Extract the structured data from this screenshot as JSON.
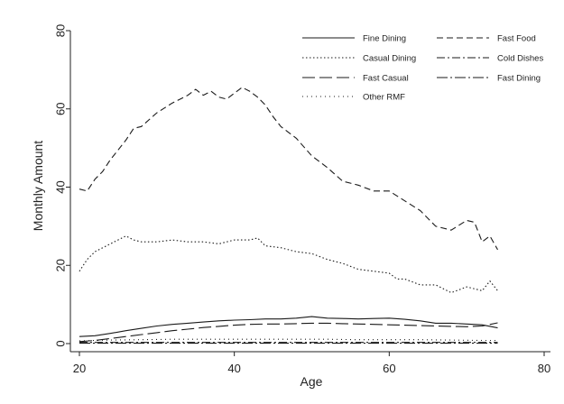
{
  "chart_data": {
    "type": "line",
    "title": "",
    "xlabel": "Age",
    "ylabel": "Monthly Amount",
    "xlim": [
      20,
      80
    ],
    "ylim": [
      0,
      80
    ],
    "xticks": [
      20,
      40,
      60,
      80
    ],
    "yticks": [
      0,
      20,
      40,
      60,
      80
    ],
    "grid": false,
    "legend_position": "top-right",
    "series": [
      {
        "name": "Fine Dining",
        "style": "solid",
        "x": [
          20,
          22,
          24,
          26,
          28,
          30,
          32,
          34,
          36,
          38,
          40,
          42,
          44,
          46,
          48,
          50,
          52,
          54,
          56,
          58,
          60,
          62,
          64,
          66,
          68,
          70,
          72,
          74
        ],
        "y": [
          1.8,
          2.0,
          2.6,
          3.3,
          3.9,
          4.5,
          4.9,
          5.2,
          5.5,
          5.8,
          6.0,
          6.1,
          6.3,
          6.3,
          6.5,
          6.9,
          6.5,
          6.4,
          6.3,
          6.4,
          6.5,
          6.2,
          5.8,
          5.2,
          5.2,
          5.0,
          4.8,
          4.0
        ]
      },
      {
        "name": "Fast Food",
        "style": "dashed",
        "x": [
          20,
          21,
          22,
          23,
          24,
          25,
          26,
          27,
          28,
          30,
          32,
          34,
          35,
          36,
          37,
          38,
          39,
          40,
          41,
          42,
          43,
          44,
          45,
          46,
          48,
          50,
          52,
          54,
          56,
          58,
          60,
          62,
          64,
          66,
          68,
          70,
          71,
          72,
          73,
          74
        ],
        "y": [
          39.5,
          39.0,
          42,
          44,
          47,
          49.5,
          52,
          55,
          55.5,
          59,
          61.5,
          63.5,
          65,
          63.5,
          64.5,
          63,
          62.5,
          64,
          65.5,
          64.5,
          63,
          61,
          58,
          55.5,
          52.5,
          48,
          45,
          41.5,
          40.5,
          39,
          39,
          36.5,
          34,
          30,
          29,
          31.5,
          31,
          26,
          27.5,
          24
        ]
      },
      {
        "name": "Casual Dining",
        "style": "dotted",
        "x": [
          20,
          21,
          22,
          24,
          26,
          27,
          28,
          30,
          32,
          34,
          36,
          38,
          40,
          42,
          43,
          44,
          46,
          48,
          50,
          52,
          54,
          56,
          58,
          60,
          61,
          62,
          64,
          66,
          68,
          70,
          72,
          73,
          74
        ],
        "y": [
          18.5,
          21.5,
          23.5,
          25.5,
          27.5,
          26.5,
          26,
          26,
          26.5,
          26,
          26,
          25.5,
          26.5,
          26.5,
          27,
          25,
          24.5,
          23.5,
          23,
          21.5,
          20.5,
          19,
          18.5,
          18,
          16.5,
          16.5,
          15,
          15,
          13,
          14.5,
          13.5,
          16,
          13.5
        ]
      },
      {
        "name": "Cold Dishes",
        "style": "dashdot",
        "x": [
          20,
          24,
          28,
          32,
          36,
          40,
          44,
          48,
          52,
          56,
          60,
          64,
          68,
          72,
          74
        ],
        "y": [
          0.3,
          0.3,
          0.3,
          0.3,
          0.3,
          0.3,
          0.3,
          0.3,
          0.3,
          0.3,
          0.3,
          0.3,
          0.3,
          0.3,
          0.3
        ]
      },
      {
        "name": "Fast Casual",
        "style": "longdash",
        "x": [
          20,
          22,
          24,
          26,
          28,
          30,
          32,
          34,
          36,
          38,
          40,
          42,
          44,
          46,
          48,
          50,
          52,
          54,
          56,
          58,
          60,
          62,
          64,
          66,
          68,
          70,
          72,
          74
        ],
        "y": [
          0.5,
          0.8,
          1.3,
          1.8,
          2.3,
          2.8,
          3.3,
          3.7,
          4.1,
          4.4,
          4.7,
          4.9,
          5.0,
          5.0,
          5.1,
          5.2,
          5.2,
          5.1,
          5.0,
          4.9,
          4.8,
          4.7,
          4.6,
          4.5,
          4.4,
          4.3,
          4.5,
          5.3
        ]
      },
      {
        "name": "Fast Dining",
        "style": "longdashdot",
        "x": [
          20,
          24,
          28,
          32,
          36,
          40,
          44,
          48,
          52,
          56,
          60,
          64,
          68,
          72,
          74
        ],
        "y": [
          0.1,
          0.1,
          0.1,
          0.1,
          0.1,
          0.1,
          0.1,
          0.1,
          0.1,
          0.1,
          0.1,
          0.1,
          0.1,
          0.1,
          0.1
        ]
      },
      {
        "name": "Other RMF",
        "style": "finedot",
        "x": [
          20,
          24,
          28,
          32,
          36,
          40,
          44,
          48,
          52,
          56,
          60,
          64,
          68,
          72,
          74
        ],
        "y": [
          0.7,
          0.9,
          1.0,
          1.1,
          1.1,
          1.1,
          1.1,
          1.1,
          1.1,
          1.0,
          1.0,
          1.0,
          0.9,
          0.8,
          0.8
        ]
      }
    ]
  }
}
